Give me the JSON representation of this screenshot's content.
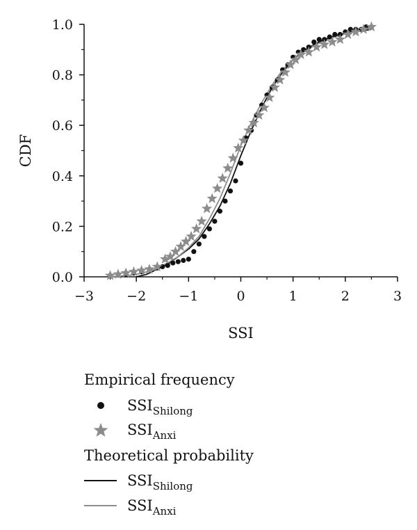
{
  "chart_data": {
    "type": "line",
    "xlabel": "SSI",
    "ylabel": "CDF",
    "xlim": [
      -3,
      3
    ],
    "ylim": [
      0,
      1
    ],
    "x_ticks": [
      "−3",
      "−2",
      "−1",
      "0",
      "1",
      "2",
      "3"
    ],
    "y_ticks": [
      "0.0",
      "0.2",
      "0.4",
      "0.6",
      "0.8",
      "1.0"
    ],
    "grid": false,
    "legend": {
      "placement": "below",
      "groups": [
        {
          "title": "Empirical frequency",
          "entries": [
            {
              "marker": "dot",
              "base": "SSI",
              "sub": "Shilong"
            },
            {
              "marker": "star",
              "base": "SSI",
              "sub": "Anxi"
            }
          ]
        },
        {
          "title": "Theoretical probability",
          "entries": [
            {
              "marker": "line",
              "base": "SSI",
              "sub": "Shilong"
            },
            {
              "marker": "line",
              "base": "SSI",
              "sub": "Anxi"
            }
          ]
        }
      ]
    },
    "colors": {
      "shilong": "#111111",
      "anxi": "#8c8c8c"
    },
    "series": [
      {
        "name": "SSIShilong",
        "kind": "empirical",
        "marker": "dot",
        "color": "#111111",
        "x": [
          -2.2,
          -2.05,
          -1.9,
          -1.75,
          -1.6,
          -1.5,
          -1.4,
          -1.3,
          -1.2,
          -1.1,
          -1.0,
          -0.9,
          -0.8,
          -0.7,
          -0.6,
          -0.5,
          -0.4,
          -0.3,
          -0.2,
          -0.1,
          0.0,
          0.1,
          0.2,
          0.3,
          0.4,
          0.5,
          0.6,
          0.7,
          0.8,
          0.9,
          1.0,
          1.1,
          1.2,
          1.3,
          1.4,
          1.5,
          1.6,
          1.7,
          1.8,
          1.9,
          2.0,
          2.1,
          2.2,
          2.3,
          2.4
        ],
        "y": [
          0.01,
          0.015,
          0.02,
          0.03,
          0.035,
          0.04,
          0.045,
          0.055,
          0.06,
          0.065,
          0.07,
          0.1,
          0.13,
          0.16,
          0.19,
          0.22,
          0.26,
          0.3,
          0.34,
          0.38,
          0.45,
          0.55,
          0.58,
          0.64,
          0.68,
          0.72,
          0.75,
          0.78,
          0.82,
          0.84,
          0.87,
          0.89,
          0.9,
          0.91,
          0.93,
          0.94,
          0.94,
          0.95,
          0.96,
          0.96,
          0.97,
          0.98,
          0.98,
          0.98,
          0.99
        ]
      },
      {
        "name": "SSIAnxi",
        "kind": "empirical",
        "marker": "star",
        "color": "#8c8c8c",
        "x": [
          -2.5,
          -2.35,
          -2.2,
          -2.05,
          -1.9,
          -1.75,
          -1.6,
          -1.45,
          -1.35,
          -1.25,
          -1.15,
          -1.05,
          -0.95,
          -0.85,
          -0.75,
          -0.65,
          -0.55,
          -0.45,
          -0.35,
          -0.25,
          -0.15,
          -0.05,
          0.05,
          0.15,
          0.25,
          0.35,
          0.45,
          0.55,
          0.65,
          0.75,
          0.85,
          0.95,
          1.05,
          1.15,
          1.3,
          1.45,
          1.6,
          1.75,
          1.9,
          2.05,
          2.2,
          2.35,
          2.5
        ],
        "y": [
          0.005,
          0.01,
          0.015,
          0.02,
          0.025,
          0.03,
          0.04,
          0.07,
          0.08,
          0.1,
          0.12,
          0.14,
          0.16,
          0.19,
          0.22,
          0.27,
          0.31,
          0.35,
          0.39,
          0.43,
          0.47,
          0.51,
          0.54,
          0.58,
          0.61,
          0.64,
          0.67,
          0.71,
          0.75,
          0.78,
          0.81,
          0.84,
          0.86,
          0.88,
          0.89,
          0.91,
          0.92,
          0.93,
          0.94,
          0.96,
          0.97,
          0.98,
          0.99
        ]
      },
      {
        "name": "SSIShilong",
        "kind": "theoretical",
        "marker": "line",
        "color": "#111111",
        "x": [
          -2.0,
          -1.8,
          -1.6,
          -1.4,
          -1.2,
          -1.0,
          -0.8,
          -0.6,
          -0.4,
          -0.2,
          0.0,
          0.2,
          0.4,
          0.6,
          0.8,
          1.0,
          1.2,
          1.4,
          1.6,
          1.8,
          2.0,
          2.2,
          2.4,
          2.5
        ],
        "y": [
          0.0,
          0.01,
          0.03,
          0.05,
          0.08,
          0.11,
          0.15,
          0.21,
          0.28,
          0.37,
          0.48,
          0.58,
          0.67,
          0.75,
          0.81,
          0.86,
          0.895,
          0.92,
          0.94,
          0.955,
          0.965,
          0.972,
          0.977,
          0.98
        ]
      },
      {
        "name": "SSIAnxi",
        "kind": "theoretical",
        "marker": "line",
        "color": "#8c8c8c",
        "x": [
          -2.5,
          -2.2,
          -2.0,
          -1.8,
          -1.6,
          -1.4,
          -1.2,
          -1.0,
          -0.8,
          -0.6,
          -0.4,
          -0.2,
          0.0,
          0.2,
          0.4,
          0.6,
          0.8,
          1.0,
          1.2,
          1.4,
          1.6,
          1.8,
          2.0,
          2.2,
          2.5
        ],
        "y": [
          0.0,
          0.005,
          0.01,
          0.02,
          0.035,
          0.055,
          0.08,
          0.115,
          0.16,
          0.23,
          0.31,
          0.41,
          0.52,
          0.61,
          0.69,
          0.76,
          0.82,
          0.86,
          0.89,
          0.915,
          0.935,
          0.95,
          0.962,
          0.972,
          0.985
        ]
      }
    ]
  }
}
